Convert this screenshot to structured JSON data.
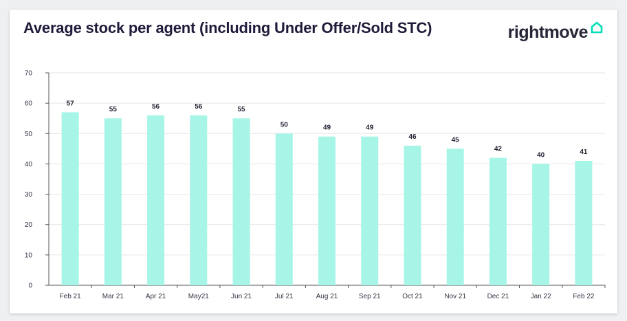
{
  "header": {
    "title": "Average stock per agent (including Under Offer/Sold STC)",
    "logo_text": "rightmove",
    "logo_icon": "house-icon"
  },
  "colors": {
    "bar": "#a6f5e6",
    "logo_accent": "#00deb6",
    "gridline": "#e6e6e6",
    "axis": "#555555"
  },
  "chart_data": {
    "type": "bar",
    "title": "Average stock per agent (including Under Offer/Sold STC)",
    "xlabel": "",
    "ylabel": "",
    "ylim": [
      0,
      70
    ],
    "yticks": [
      0,
      10,
      20,
      30,
      40,
      50,
      60,
      70
    ],
    "grid": true,
    "categories": [
      "Feb 21",
      "Mar 21",
      "Apr 21",
      "May21",
      "Jun 21",
      "Jul 21",
      "Aug 21",
      "Sep 21",
      "Oct 21",
      "Nov 21",
      "Dec 21",
      "Jan 22",
      "Feb 22"
    ],
    "values": [
      57,
      55,
      56,
      56,
      55,
      50,
      49,
      49,
      46,
      45,
      42,
      40,
      41
    ]
  }
}
